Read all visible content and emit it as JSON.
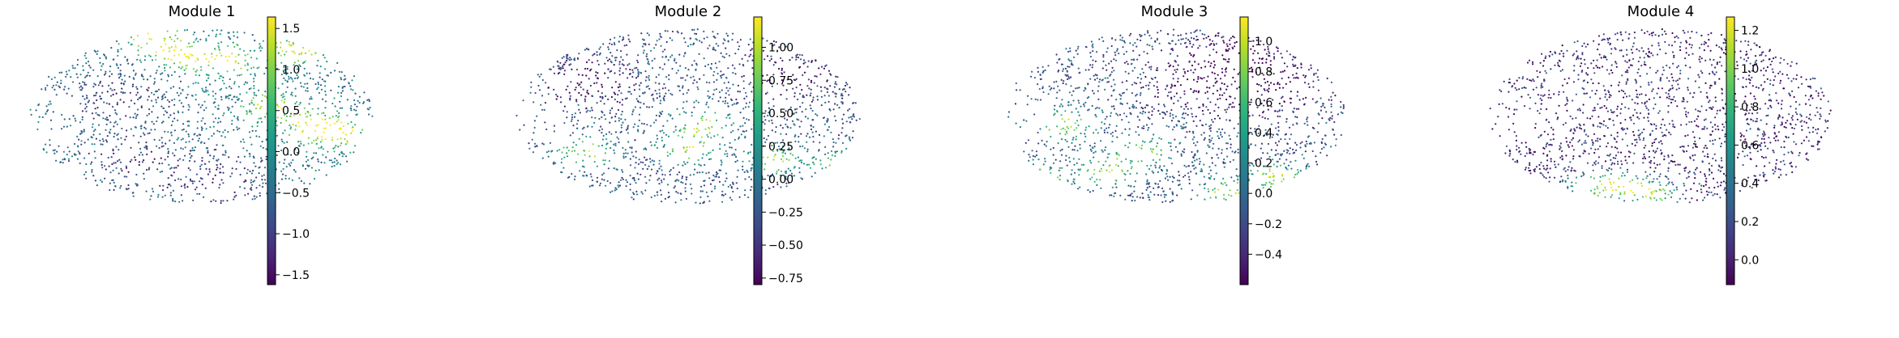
{
  "colormap": "viridis",
  "chart_data": [
    {
      "type": "scatter",
      "title": "Module 1",
      "colorbar": {
        "min": -1.62,
        "max": 1.64,
        "ticks": [
          -1.5,
          -1.0,
          -0.5,
          0.0,
          0.5,
          1.0,
          1.5
        ],
        "tick_labels": [
          "−1.5",
          "−1.0",
          "−0.5",
          "0.0",
          "0.5",
          "1.0",
          "1.5"
        ]
      },
      "hotspots": [
        [
          0.58,
          0.18
        ],
        [
          0.78,
          0.12
        ],
        [
          0.7,
          0.45
        ],
        [
          0.9,
          0.6
        ],
        [
          0.82,
          0.55
        ],
        [
          0.45,
          0.15
        ],
        [
          0.36,
          0.06
        ]
      ],
      "coldspots": [
        [
          0.55,
          0.88
        ],
        [
          0.25,
          0.4
        ],
        [
          0.3,
          0.75
        ]
      ],
      "bias": 0.25
    },
    {
      "type": "scatter",
      "title": "Module 2",
      "colorbar": {
        "min": -0.8,
        "max": 1.23,
        "ticks": [
          -0.75,
          -0.5,
          -0.25,
          0.0,
          0.25,
          0.5,
          0.75,
          1.0
        ],
        "tick_labels": [
          "−0.75",
          "−0.50",
          "−0.25",
          "0.00",
          "0.25",
          "0.50",
          "0.75",
          "1.00"
        ]
      },
      "hotspots": [
        [
          0.5,
          0.68
        ],
        [
          0.55,
          0.55
        ],
        [
          0.75,
          0.75
        ],
        [
          0.2,
          0.7
        ],
        [
          0.95,
          0.78
        ]
      ],
      "coldspots": [
        [
          0.2,
          0.3
        ],
        [
          0.8,
          0.25
        ]
      ],
      "bias": -0.05
    },
    {
      "type": "scatter",
      "title": "Module 3",
      "colorbar": {
        "min": -0.6,
        "max": 1.16,
        "ticks": [
          -0.4,
          -0.2,
          0.0,
          0.2,
          0.4,
          0.6,
          0.8,
          1.0
        ],
        "tick_labels": [
          "−0.4",
          "−0.2",
          "0.0",
          "0.2",
          "0.4",
          "0.6",
          "0.8",
          "1.0"
        ]
      },
      "hotspots": [
        [
          0.18,
          0.55
        ],
        [
          0.4,
          0.7
        ],
        [
          0.65,
          0.93
        ],
        [
          0.8,
          0.85
        ],
        [
          0.3,
          0.82
        ],
        [
          0.1,
          0.85
        ]
      ],
      "coldspots": [
        [
          0.55,
          0.3
        ],
        [
          0.8,
          0.35
        ],
        [
          0.7,
          0.15
        ]
      ],
      "bias": -0.1
    },
    {
      "type": "scatter",
      "title": "Module 4",
      "colorbar": {
        "min": -0.13,
        "max": 1.27,
        "ticks": [
          0.0,
          0.2,
          0.4,
          0.6,
          0.8,
          1.0,
          1.2
        ],
        "tick_labels": [
          "0.0",
          "0.2",
          "0.4",
          "0.6",
          "0.8",
          "1.0",
          "1.2"
        ]
      },
      "hotspots": [
        [
          0.4,
          0.9
        ],
        [
          0.48,
          0.95
        ],
        [
          0.3,
          0.9
        ]
      ],
      "coldspots": [],
      "bias": -0.45
    }
  ]
}
